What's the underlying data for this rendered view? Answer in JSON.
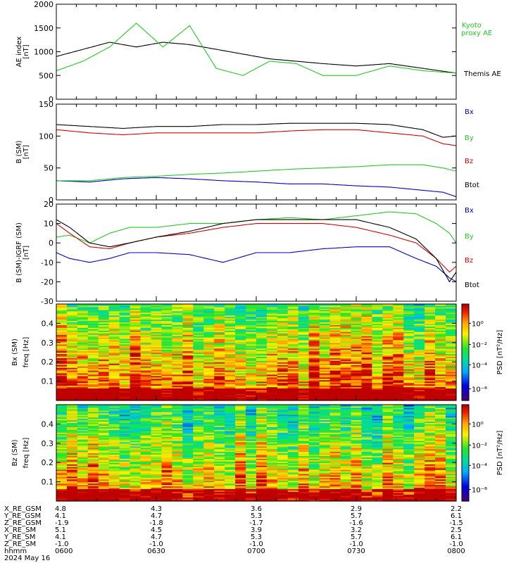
{
  "chart_data": [
    {
      "type": "line",
      "ylabel": [
        "AE index",
        "[nT]"
      ],
      "ylim": [
        0,
        2000
      ],
      "yticks": [
        0,
        500,
        1000,
        1500,
        2000
      ],
      "x_minutes": [
        0,
        8,
        16,
        24,
        32,
        40,
        48,
        56,
        64,
        72,
        80,
        90,
        100,
        110,
        120
      ],
      "series": [
        {
          "name": "Themis AE",
          "color": "#000000",
          "values": [
            900,
            1050,
            1200,
            1100,
            1200,
            1150,
            1050,
            950,
            850,
            800,
            750,
            700,
            750,
            650,
            550
          ]
        },
        {
          "name": "Kyoto proxy AE",
          "color": "#22cc22",
          "values": [
            600,
            800,
            1100,
            1600,
            1100,
            1550,
            650,
            500,
            800,
            750,
            500,
            500,
            700,
            600,
            550
          ]
        }
      ],
      "legend": [
        "Kyoto proxy AE",
        "Themis AE"
      ],
      "legend_placement": "right"
    },
    {
      "type": "line",
      "ylabel": [
        "B (SM)",
        "[nT]"
      ],
      "ylim": [
        0,
        150
      ],
      "yticks": [
        0,
        50,
        100,
        150
      ],
      "x_minutes": [
        0,
        10,
        20,
        30,
        40,
        50,
        60,
        70,
        80,
        90,
        100,
        110,
        116,
        120
      ],
      "series": [
        {
          "name": "Bx",
          "color": "#0000cc",
          "values": [
            30,
            28,
            33,
            35,
            33,
            30,
            28,
            25,
            25,
            22,
            20,
            15,
            12,
            5
          ]
        },
        {
          "name": "By",
          "color": "#22cc22",
          "values": [
            30,
            30,
            35,
            37,
            40,
            42,
            45,
            48,
            50,
            52,
            55,
            55,
            50,
            45
          ]
        },
        {
          "name": "Bz",
          "color": "#dd0000",
          "values": [
            110,
            105,
            102,
            105,
            105,
            105,
            105,
            108,
            110,
            110,
            105,
            100,
            88,
            85
          ]
        },
        {
          "name": "Btot",
          "color": "#000000",
          "values": [
            118,
            115,
            112,
            115,
            115,
            118,
            118,
            120,
            120,
            120,
            118,
            110,
            98,
            100
          ]
        }
      ],
      "legend": [
        "Bx",
        "By",
        "Bz",
        "Btot"
      ],
      "legend_placement": "right"
    },
    {
      "type": "line",
      "ylabel": [
        "B (SM)-IGRF (SM)",
        "[nT]"
      ],
      "ylim": [
        -30,
        20
      ],
      "yticks": [
        -30,
        -20,
        -10,
        0,
        10,
        20
      ],
      "x_minutes": [
        0,
        4,
        10,
        16,
        22,
        30,
        40,
        50,
        60,
        70,
        80,
        90,
        100,
        108,
        114,
        118,
        120
      ],
      "series": [
        {
          "name": "Bx",
          "color": "#0000cc",
          "values": [
            -5,
            -8,
            -10,
            -8,
            -5,
            -5,
            -6,
            -10,
            -5,
            -5,
            -3,
            -2,
            -2,
            -8,
            -12,
            -18,
            -20
          ]
        },
        {
          "name": "By",
          "color": "#22cc22",
          "values": [
            3,
            4,
            0,
            5,
            8,
            8,
            10,
            10,
            12,
            13,
            12,
            14,
            16,
            15,
            10,
            5,
            0
          ]
        },
        {
          "name": "Bz",
          "color": "#dd0000",
          "values": [
            10,
            5,
            -2,
            -3,
            0,
            3,
            5,
            8,
            10,
            10,
            10,
            8,
            4,
            0,
            -8,
            -15,
            -12
          ]
        },
        {
          "name": "Btot",
          "color": "#000000",
          "values": [
            12,
            8,
            0,
            -2,
            0,
            3,
            6,
            10,
            12,
            12,
            12,
            12,
            8,
            2,
            -8,
            -20,
            -15
          ]
        }
      ],
      "legend": [
        "Bx",
        "By",
        "Bz",
        "Btot"
      ],
      "legend_placement": "right"
    },
    {
      "type": "heatmap",
      "ylabel": [
        "Bx (SM)",
        "freq [Hz]"
      ],
      "yticks": [
        "0.1",
        "0.2",
        "0.3",
        "0.4"
      ],
      "ylim": [
        0,
        0.5
      ],
      "colorbar_label": "PSD [nT²/Hz]",
      "colorbar_ticks": [
        "10⁰",
        "10⁻²",
        "10⁻⁴",
        "10⁻⁶"
      ]
    },
    {
      "type": "heatmap",
      "ylabel": [
        "Bz (SM)",
        "freq [Hz]"
      ],
      "yticks": [
        "0.1",
        "0.2",
        "0.3",
        "0.4"
      ],
      "ylim": [
        0,
        0.5
      ],
      "colorbar_label": "PSD [nT²/Hz]",
      "colorbar_ticks": [
        "10⁰",
        "10⁻²",
        "10⁻⁴",
        "10⁻⁶"
      ]
    }
  ],
  "position_table": {
    "rows": [
      {
        "label": "X_RE_GSM",
        "values": [
          "4.8",
          "4.3",
          "3.6",
          "2.9",
          "2.2"
        ]
      },
      {
        "label": "Y_RE_GSM",
        "values": [
          "4.1",
          "4.7",
          "5.3",
          "5.7",
          "6.1"
        ]
      },
      {
        "label": "Z_RE_GSM",
        "values": [
          "-1.9",
          "-1.8",
          "-1.7",
          "-1.6",
          "-1.5"
        ]
      },
      {
        "label": "X_RE_SM",
        "values": [
          "5.1",
          "4.5",
          "3.9",
          "3.2",
          "2.5"
        ]
      },
      {
        "label": "Y_RE_SM",
        "values": [
          "4.1",
          "4.7",
          "5.3",
          "5.7",
          "6.1"
        ]
      },
      {
        "label": "Z_RE_SM",
        "values": [
          "-1.0",
          "-1.0",
          "-1.0",
          "-1.0",
          "-1.0"
        ]
      },
      {
        "label": "hhmm",
        "values": [
          "0600",
          "0630",
          "0700",
          "0730",
          "0800"
        ]
      }
    ],
    "date": "2024 May 16"
  }
}
